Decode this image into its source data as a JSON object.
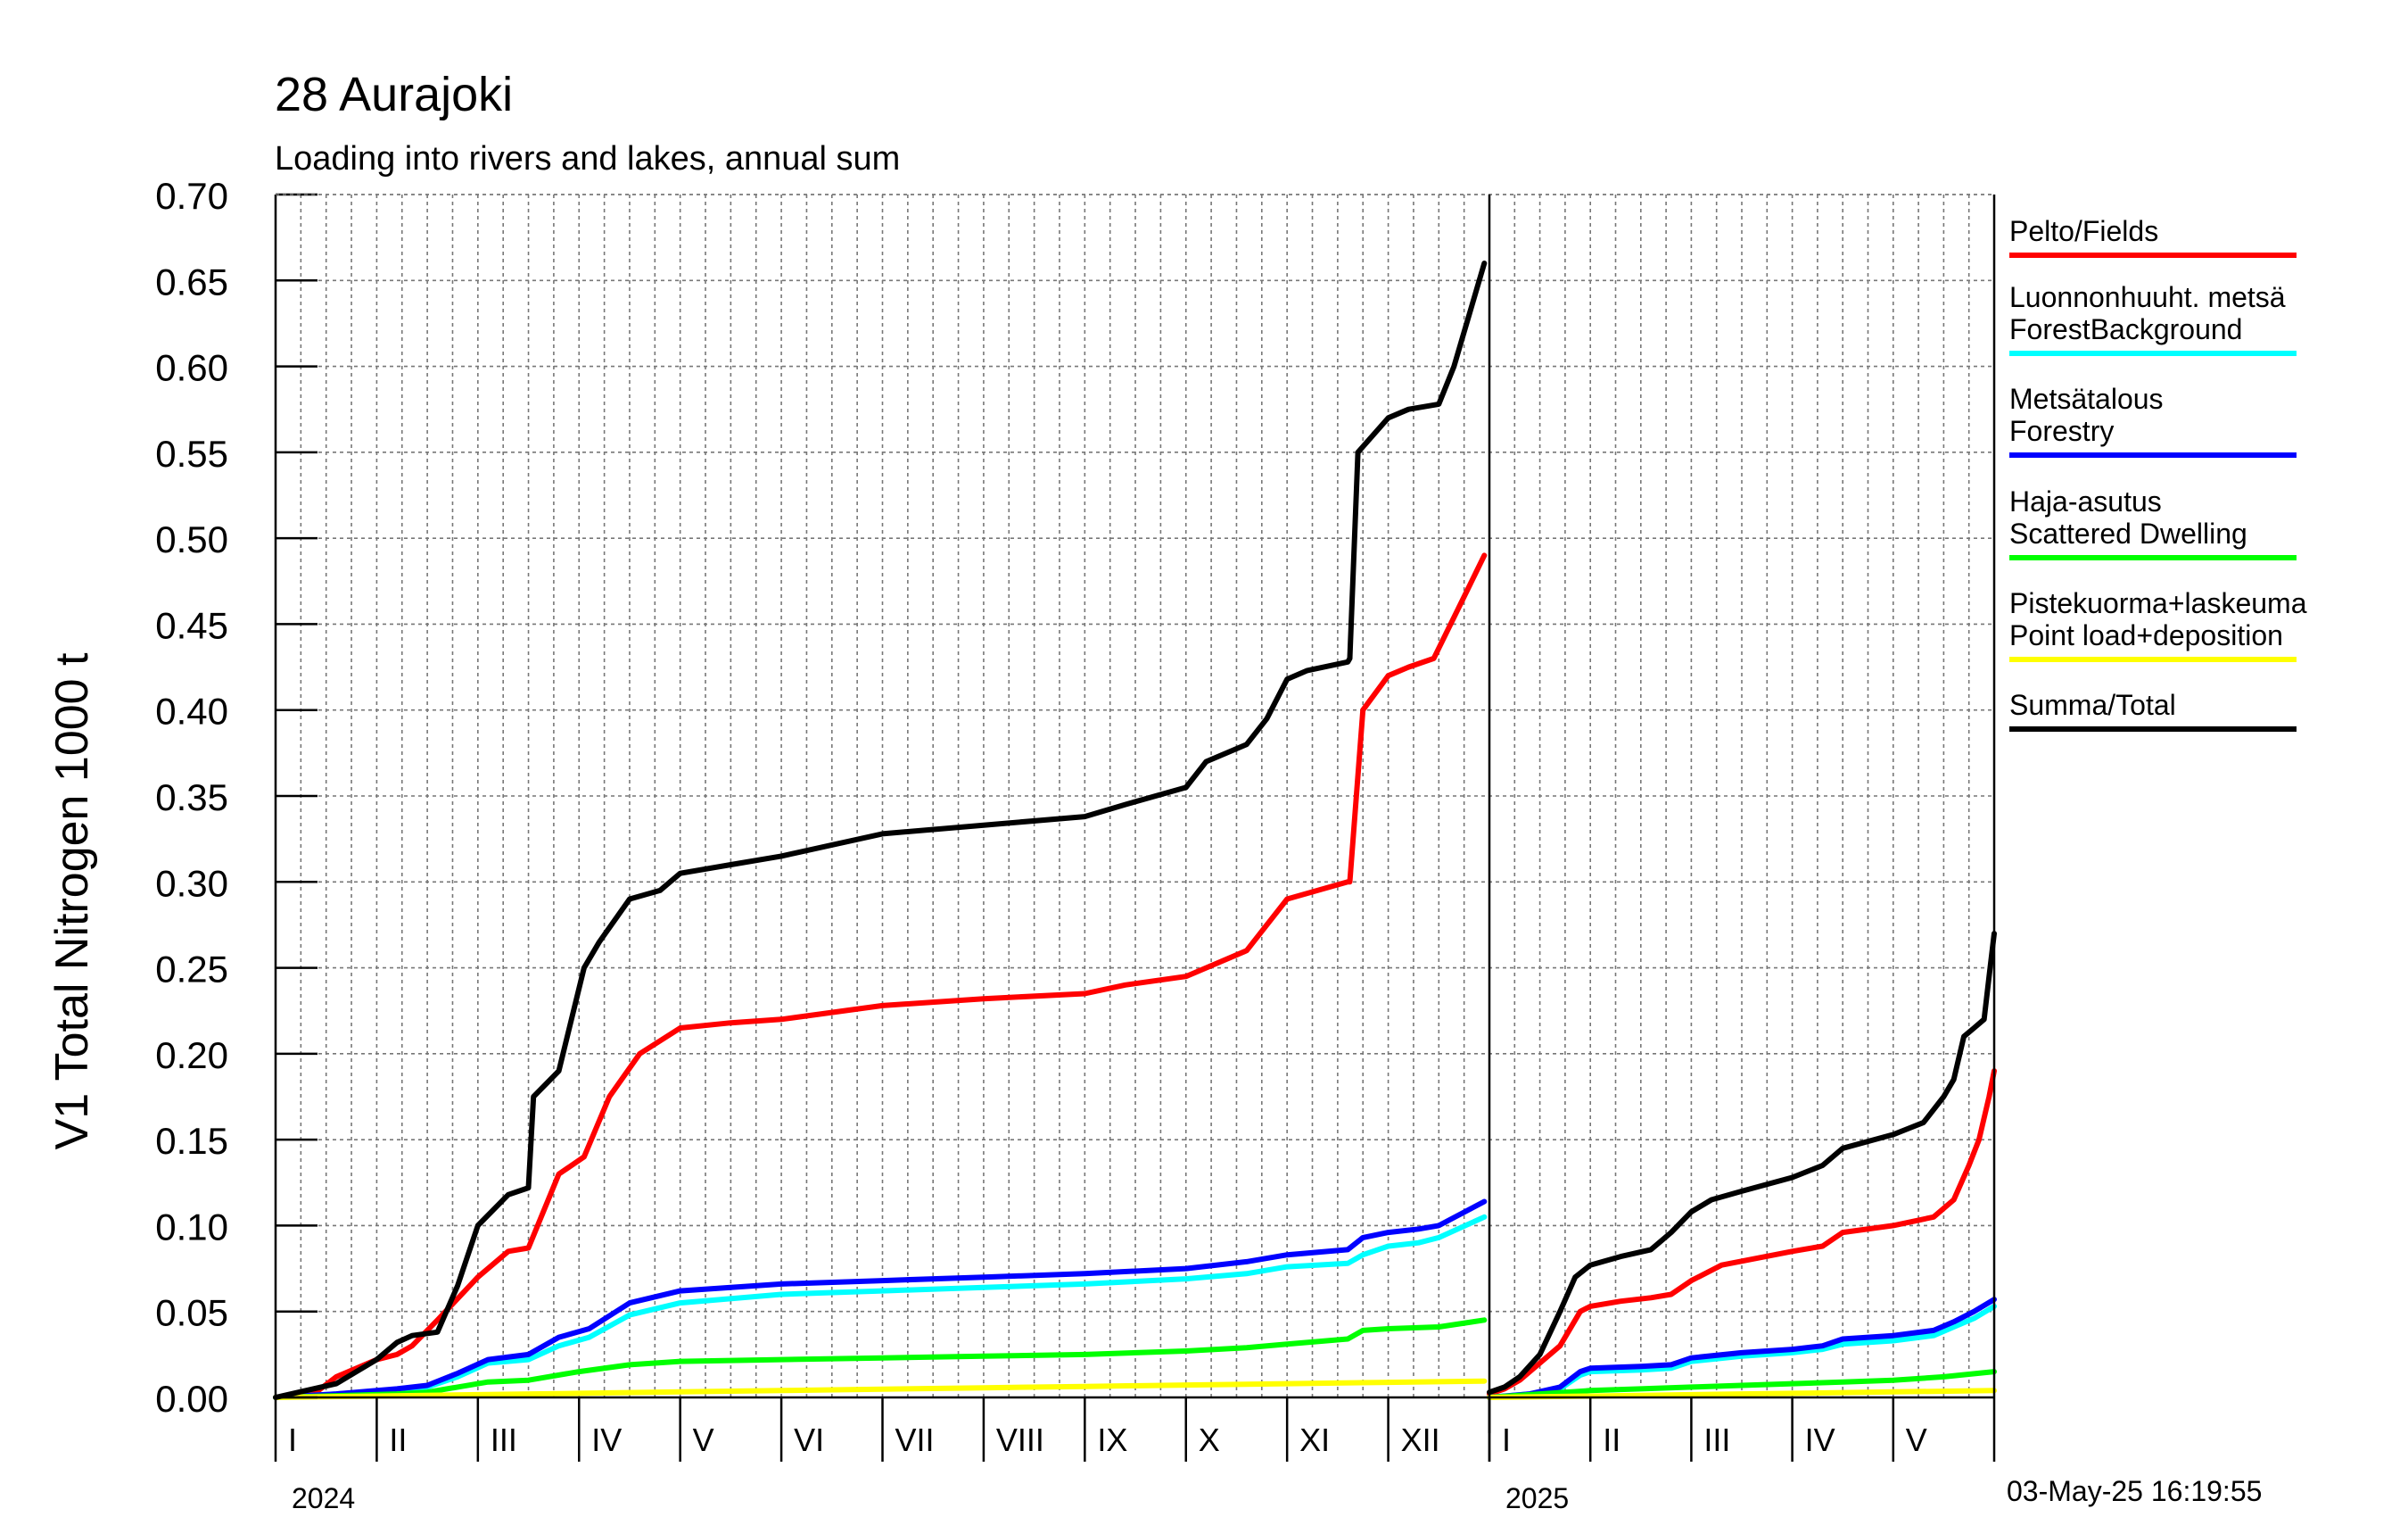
{
  "chart_data": {
    "type": "line",
    "title": "28 Aurajoki",
    "subtitle": "Loading into rivers and lakes, annual sum",
    "ylabel": "V1 Total Nitrogen 1000 t",
    "ylim": [
      0,
      0.7
    ],
    "y_ticks": [
      "0.00",
      "0.05",
      "0.10",
      "0.15",
      "0.20",
      "0.25",
      "0.30",
      "0.35",
      "0.40",
      "0.45",
      "0.50",
      "0.55",
      "0.60",
      "0.65",
      "0.70"
    ],
    "grid": true,
    "legend_position": "right",
    "timestamp": "03-May-25 16:19:55",
    "panels": [
      {
        "year": "2024",
        "months": [
          "I",
          "II",
          "III",
          "IV",
          "V",
          "VI",
          "VII",
          "VIII",
          "IX",
          "X",
          "XI",
          "XII"
        ],
        "x_range": [
          1,
          13
        ],
        "series": [
          {
            "name": "Pelto/Fields",
            "color": "#ff0000",
            "x": [
              1,
              1.4,
              1.6,
              2,
              2.2,
              2.35,
              2.6,
              3.0,
              3.3,
              3.5,
              3.8,
              4.05,
              4.3,
              4.6,
              5.0,
              5.5,
              6.0,
              7.0,
              8.0,
              9.0,
              9.4,
              10.0,
              10.6,
              11.0,
              11.6,
              11.62,
              11.75,
              12.0,
              12.2,
              12.45,
              12.7,
              12.95
            ],
            "y": [
              0,
              0.003,
              0.012,
              0.022,
              0.025,
              0.03,
              0.045,
              0.07,
              0.085,
              0.087,
              0.13,
              0.14,
              0.175,
              0.2,
              0.215,
              0.218,
              0.22,
              0.228,
              0.232,
              0.235,
              0.24,
              0.245,
              0.26,
              0.29,
              0.3,
              0.3,
              0.4,
              0.42,
              0.425,
              0.43,
              0.46,
              0.49
            ]
          },
          {
            "name": "Luonnonhuuht. metsä ForestBackground",
            "color": "#00ffff",
            "x": [
              1,
              1.6,
              2.2,
              2.5,
              2.8,
              3.1,
              3.5,
              3.8,
              4.1,
              4.5,
              5.0,
              6.0,
              7.0,
              8.0,
              9.0,
              10.0,
              10.6,
              11.0,
              11.6,
              11.75,
              12.0,
              12.3,
              12.5,
              12.95
            ],
            "y": [
              0,
              0.002,
              0.004,
              0.006,
              0.012,
              0.02,
              0.022,
              0.03,
              0.035,
              0.048,
              0.055,
              0.06,
              0.062,
              0.064,
              0.066,
              0.069,
              0.072,
              0.076,
              0.078,
              0.083,
              0.088,
              0.09,
              0.093,
              0.105
            ]
          },
          {
            "name": "Metsätalous Forestry",
            "color": "#0000ff",
            "x": [
              1,
              1.6,
              2.2,
              2.5,
              2.8,
              3.1,
              3.5,
              3.8,
              4.1,
              4.5,
              5.0,
              6.0,
              7.0,
              8.0,
              9.0,
              10.0,
              10.6,
              11.0,
              11.6,
              11.75,
              12.0,
              12.3,
              12.5,
              12.95
            ],
            "y": [
              0,
              0.002,
              0.005,
              0.007,
              0.014,
              0.022,
              0.025,
              0.035,
              0.04,
              0.055,
              0.062,
              0.066,
              0.068,
              0.07,
              0.072,
              0.075,
              0.079,
              0.083,
              0.086,
              0.093,
              0.096,
              0.098,
              0.1,
              0.114
            ]
          },
          {
            "name": "Haja-asutus Scattered Dwelling",
            "color": "#00ff00",
            "x": [
              1,
              1.6,
              2.2,
              2.5,
              2.8,
              3.1,
              3.5,
              4.0,
              4.5,
              5.0,
              6.0,
              7.0,
              8.0,
              9.0,
              10.0,
              10.6,
              11.0,
              11.6,
              11.75,
              12.0,
              12.5,
              12.95
            ],
            "y": [
              0,
              0.001,
              0.002,
              0.003,
              0.006,
              0.009,
              0.01,
              0.015,
              0.019,
              0.021,
              0.022,
              0.023,
              0.024,
              0.025,
              0.027,
              0.029,
              0.031,
              0.034,
              0.039,
              0.04,
              0.041,
              0.045
            ]
          },
          {
            "name": "Pistekuorma+laskeuma Point load+deposition",
            "color": "#ffff00",
            "x": [
              1,
              2,
              3,
              4,
              5,
              6,
              7,
              8,
              9,
              10,
              11,
              12,
              12.95
            ],
            "y": [
              0,
              0.0008,
              0.0016,
              0.0024,
              0.0032,
              0.004,
              0.0048,
              0.0056,
              0.0064,
              0.0072,
              0.008,
              0.0088,
              0.0095
            ]
          },
          {
            "name": "Summa/Total",
            "color": "#000000",
            "x": [
              1,
              1.3,
              1.6,
              1.8,
              2,
              2.2,
              2.35,
              2.6,
              2.8,
              3.0,
              3.3,
              3.5,
              3.55,
              3.8,
              4.05,
              4.2,
              4.5,
              4.8,
              5.0,
              5.5,
              6.0,
              7.0,
              8.0,
              9.0,
              9.4,
              10.0,
              10.2,
              10.6,
              10.8,
              11.0,
              11.2,
              11.6,
              11.62,
              11.7,
              12.0,
              12.2,
              12.5,
              12.65,
              12.95
            ],
            "y": [
              0,
              0.004,
              0.008,
              0.015,
              0.022,
              0.032,
              0.036,
              0.038,
              0.065,
              0.1,
              0.118,
              0.122,
              0.175,
              0.19,
              0.25,
              0.265,
              0.29,
              0.295,
              0.305,
              0.31,
              0.315,
              0.328,
              0.333,
              0.338,
              0.345,
              0.355,
              0.37,
              0.38,
              0.395,
              0.418,
              0.423,
              0.428,
              0.43,
              0.55,
              0.57,
              0.575,
              0.578,
              0.6,
              0.66
            ]
          }
        ]
      },
      {
        "year": "2025",
        "months": [
          "I",
          "II",
          "III",
          "IV",
          "V"
        ],
        "x_range": [
          1,
          6
        ],
        "series": [
          {
            "name": "Pelto/Fields",
            "color": "#ff0000",
            "x": [
              1,
              1.15,
              1.3,
              1.5,
              1.7,
              1.9,
              2.0,
              2.3,
              2.6,
              2.8,
              3.0,
              3.3,
              4.0,
              4.3,
              4.5,
              5.0,
              5.4,
              5.6,
              5.75,
              5.85,
              5.95,
              6.0
            ],
            "y": [
              0.002,
              0.005,
              0.01,
              0.02,
              0.03,
              0.05,
              0.053,
              0.056,
              0.058,
              0.06,
              0.068,
              0.077,
              0.085,
              0.088,
              0.096,
              0.1,
              0.105,
              0.115,
              0.135,
              0.15,
              0.175,
              0.19
            ]
          },
          {
            "name": "Luonnonhuuht. metsä ForestBackground",
            "color": "#00ffff",
            "x": [
              1,
              1.4,
              1.7,
              1.9,
              2.0,
              2.5,
              2.8,
              3.0,
              3.5,
              4.0,
              4.3,
              4.5,
              5.0,
              5.4,
              5.6,
              5.8,
              6.0
            ],
            "y": [
              0,
              0.002,
              0.005,
              0.013,
              0.015,
              0.016,
              0.017,
              0.021,
              0.024,
              0.026,
              0.028,
              0.031,
              0.033,
              0.036,
              0.041,
              0.046,
              0.053
            ]
          },
          {
            "name": "Metsätalous Forestry",
            "color": "#0000ff",
            "x": [
              1,
              1.4,
              1.7,
              1.9,
              2.0,
              2.5,
              2.8,
              3.0,
              3.5,
              4.0,
              4.3,
              4.5,
              5.0,
              5.4,
              5.6,
              5.8,
              6.0
            ],
            "y": [
              0,
              0.002,
              0.006,
              0.015,
              0.017,
              0.018,
              0.019,
              0.023,
              0.026,
              0.028,
              0.03,
              0.034,
              0.036,
              0.039,
              0.044,
              0.05,
              0.057
            ]
          },
          {
            "name": "Haja-asutus Scattered Dwelling",
            "color": "#00ff00",
            "x": [
              1,
              1.5,
              2.0,
              2.5,
              3.0,
              3.5,
              4.0,
              4.5,
              5.0,
              5.5,
              6.0
            ],
            "y": [
              0,
              0.002,
              0.004,
              0.005,
              0.006,
              0.007,
              0.008,
              0.009,
              0.01,
              0.012,
              0.015
            ]
          },
          {
            "name": "Pistekuorma+laskeuma Point load+deposition",
            "color": "#ffff00",
            "x": [
              1,
              2,
              3,
              4,
              5,
              6
            ],
            "y": [
              0,
              0.0008,
              0.0016,
              0.0024,
              0.0032,
              0.004
            ]
          },
          {
            "name": "Summa/Total",
            "color": "#000000",
            "x": [
              1,
              1.15,
              1.3,
              1.5,
              1.7,
              1.85,
              2.0,
              2.3,
              2.6,
              2.8,
              3.0,
              3.2,
              3.5,
              4.0,
              4.3,
              4.5,
              5.0,
              5.3,
              5.5,
              5.6,
              5.7,
              5.8,
              5.9,
              5.95,
              6.0
            ],
            "y": [
              0.003,
              0.006,
              0.012,
              0.025,
              0.05,
              0.07,
              0.077,
              0.082,
              0.086,
              0.096,
              0.108,
              0.115,
              0.12,
              0.128,
              0.135,
              0.145,
              0.153,
              0.16,
              0.175,
              0.185,
              0.21,
              0.215,
              0.22,
              0.245,
              0.27
            ]
          }
        ]
      }
    ],
    "legend": [
      {
        "line1": "Pelto/Fields",
        "line2": "",
        "color": "#ff0000"
      },
      {
        "line1": "Luonnonhuuht. metsä",
        "line2": "ForestBackground",
        "color": "#00ffff"
      },
      {
        "line1": "Metsätalous",
        "line2": "Forestry",
        "color": "#0000ff"
      },
      {
        "line1": "Haja-asutus",
        "line2": "Scattered Dwelling",
        "color": "#00ff00"
      },
      {
        "line1": "Pistekuorma+laskeuma",
        "line2": "Point load+deposition",
        "color": "#ffff00"
      },
      {
        "line1": "Summa/Total",
        "line2": "",
        "color": "#000000"
      }
    ]
  }
}
